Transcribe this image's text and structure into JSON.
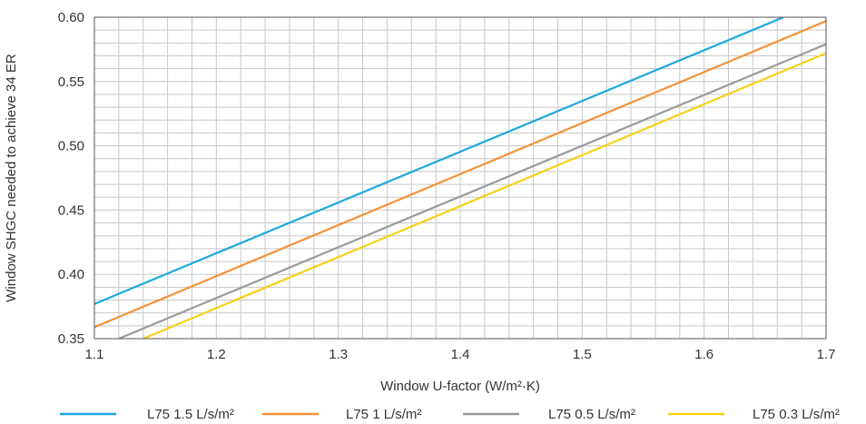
{
  "chart_data": {
    "type": "line",
    "xlabel": "Window U-factor (W/m²·K)",
    "ylabel": "Window SHGC needed to achieve 34 ER",
    "xlim": [
      1.1,
      1.7
    ],
    "ylim": [
      0.35,
      0.6
    ],
    "x_ticks": [
      "1.1",
      "1.2",
      "1.3",
      "1.4",
      "1.5",
      "1.6",
      "1.7"
    ],
    "y_ticks": [
      "0.35",
      "0.40",
      "0.45",
      "0.50",
      "0.55",
      "0.60"
    ],
    "grid": true,
    "legend_position": "bottom",
    "series": [
      {
        "name": "L75 1.5 L/s/m²",
        "color": "#1ba9dc",
        "x": [
          1.1,
          1.665
        ],
        "y": [
          0.377,
          0.6
        ]
      },
      {
        "name": "L75 1 L/s/m²",
        "color": "#f39237",
        "x": [
          1.1,
          1.7
        ],
        "y": [
          0.359,
          0.597
        ]
      },
      {
        "name": "L75 0.5 L/s/m²",
        "color": "#9a9a9a",
        "x": [
          1.12,
          1.7
        ],
        "y": [
          0.35,
          0.579
        ]
      },
      {
        "name": "L75 0.3 L/s/m²",
        "color": "#f7d117",
        "x": [
          1.14,
          1.7
        ],
        "y": [
          0.35,
          0.572
        ]
      }
    ]
  }
}
